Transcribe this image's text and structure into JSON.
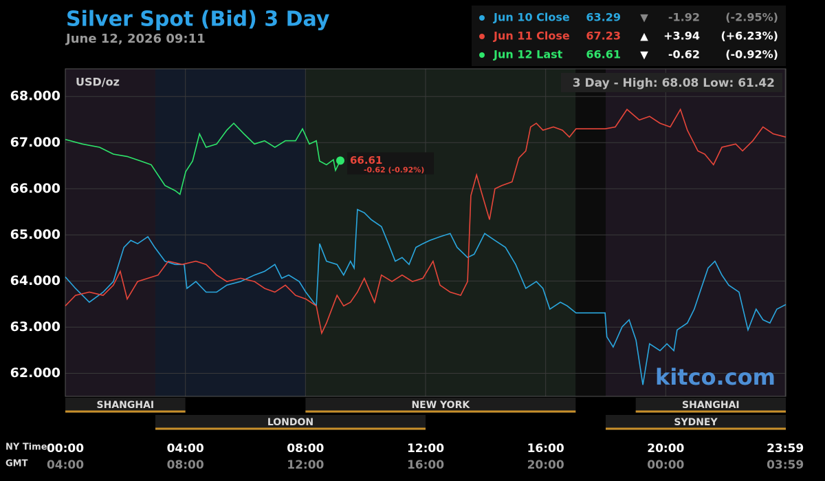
{
  "chart_data": {
    "type": "line",
    "title": "Silver Spot (Bid) 3 Day",
    "subtitle": "June 12, 2026 09:11",
    "unit_label": "USD/oz",
    "range_label": "3 Day - High: 68.08  Low: 61.42",
    "watermark": "kitco.com",
    "x_axis_label": "NY Time",
    "x2_axis_label": "GMT",
    "xlim": [
      0,
      24
    ],
    "xticks": [
      {
        "value": 0,
        "label": "00:00"
      },
      {
        "value": 4,
        "label": "04:00"
      },
      {
        "value": 8,
        "label": "08:00"
      },
      {
        "value": 12,
        "label": "12:00"
      },
      {
        "value": 16,
        "label": "16:00"
      },
      {
        "value": 20,
        "label": "20:00"
      },
      {
        "value": 23.98,
        "label": "23:59"
      }
    ],
    "x2ticks": [
      {
        "value": 0,
        "label": "04:00"
      },
      {
        "value": 4,
        "label": "08:00"
      },
      {
        "value": 8,
        "label": "12:00"
      },
      {
        "value": 12,
        "label": "16:00"
      },
      {
        "value": 16,
        "label": "20:00"
      },
      {
        "value": 20,
        "label": "00:00"
      },
      {
        "value": 23.98,
        "label": "03:59"
      }
    ],
    "ylim": [
      61.5,
      68.6
    ],
    "yticks": [
      {
        "value": 62,
        "label": "62.000"
      },
      {
        "value": 63,
        "label": "63.000"
      },
      {
        "value": 64,
        "label": "64.000"
      },
      {
        "value": 65,
        "label": "65.000"
      },
      {
        "value": 66,
        "label": "66.000"
      },
      {
        "value": 67,
        "label": "67.000"
      },
      {
        "value": 68,
        "label": "68.000"
      }
    ],
    "grid": true,
    "bands": [
      {
        "start": 0,
        "end": 3,
        "color": "#1d1620"
      },
      {
        "start": 3,
        "end": 8,
        "color": "#121a29"
      },
      {
        "start": 8,
        "end": 17,
        "color": "#18201a"
      },
      {
        "start": 17,
        "end": 18,
        "color": "#0c0c0c"
      },
      {
        "start": 18,
        "end": 24,
        "color": "#1d1620"
      }
    ],
    "sessions": [
      {
        "name": "SHANGHAI",
        "start": 0,
        "end": 4,
        "row": 1
      },
      {
        "name": "LONDON",
        "start": 3,
        "end": 12,
        "row": 2
      },
      {
        "name": "NEW YORK",
        "start": 8,
        "end": 17,
        "row": 1
      },
      {
        "name": "SHANGHAI",
        "start": 19,
        "end": 24,
        "row": 1
      },
      {
        "name": "SYDNEY",
        "start": 18,
        "end": 24,
        "row": 2
      }
    ],
    "series": [
      {
        "name": "Jun 10 Close",
        "color": "#2aa8e0",
        "close": 63.29,
        "arrow": "▼",
        "change": "-1.92",
        "change_pct": "(-2.95%)",
        "x": [
          0,
          0.34,
          0.8,
          1.26,
          1.6,
          1.95,
          2.18,
          2.41,
          2.75,
          2.98,
          3.32,
          3.66,
          3.96,
          4.05,
          4.35,
          4.69,
          5.04,
          5.38,
          5.84,
          6.3,
          6.64,
          6.98,
          7.21,
          7.44,
          7.79,
          8.01,
          8.36,
          8.47,
          8.7,
          9.05,
          9.27,
          9.5,
          9.62,
          9.73,
          9.96,
          10.19,
          10.53,
          10.76,
          10.99,
          11.22,
          11.45,
          11.68,
          11.91,
          12.14,
          12.48,
          12.82,
          13.05,
          13.4,
          13.62,
          13.97,
          14.31,
          14.66,
          15.0,
          15.34,
          15.69,
          15.91,
          16.14,
          16.49,
          16.72,
          17.01,
          17.98,
          18.04,
          18.25,
          18.55,
          18.78,
          19.01,
          19.24,
          19.46,
          19.81,
          20.04,
          20.27,
          20.38,
          20.72,
          20.95,
          21.18,
          21.41,
          21.64,
          21.87,
          22.1,
          22.44,
          22.74,
          23.01,
          23.24,
          23.47,
          23.7,
          24.0
        ],
        "values": [
          64.09,
          63.84,
          63.54,
          63.76,
          63.99,
          64.73,
          64.88,
          64.81,
          64.96,
          64.73,
          64.43,
          64.36,
          64.36,
          63.84,
          63.99,
          63.76,
          63.76,
          63.91,
          63.99,
          64.13,
          64.21,
          64.36,
          64.06,
          64.13,
          63.99,
          63.76,
          63.46,
          64.81,
          64.43,
          64.36,
          64.13,
          64.43,
          64.28,
          65.55,
          65.48,
          65.33,
          65.18,
          64.81,
          64.43,
          64.51,
          64.36,
          64.73,
          64.81,
          64.88,
          64.96,
          65.03,
          64.73,
          64.51,
          64.58,
          65.03,
          64.88,
          64.73,
          64.36,
          63.84,
          63.99,
          63.84,
          63.39,
          63.54,
          63.46,
          63.31,
          63.31,
          62.79,
          62.57,
          63.01,
          63.16,
          62.72,
          61.75,
          62.64,
          62.49,
          62.64,
          62.49,
          62.94,
          63.09,
          63.39,
          63.84,
          64.28,
          64.43,
          64.13,
          63.91,
          63.76,
          62.94,
          63.39,
          63.16,
          63.09,
          63.39,
          63.49
        ]
      },
      {
        "name": "Jun 11 Close",
        "color": "#e8463a",
        "close": 67.23,
        "arrow": "▲",
        "change": "+3.94",
        "change_pct": "(+6.23%)",
        "x": [
          0,
          0.34,
          0.8,
          1.26,
          1.6,
          1.83,
          2.06,
          2.41,
          2.75,
          3.09,
          3.43,
          3.89,
          4.35,
          4.69,
          5.04,
          5.38,
          5.84,
          6.3,
          6.64,
          6.98,
          7.33,
          7.67,
          8.01,
          8.36,
          8.54,
          8.7,
          9.05,
          9.27,
          9.5,
          9.73,
          9.96,
          10.3,
          10.53,
          10.88,
          11.22,
          11.56,
          11.91,
          12.25,
          12.48,
          12.82,
          13.17,
          13.4,
          13.51,
          13.7,
          13.86,
          14.13,
          14.31,
          14.54,
          14.88,
          15.11,
          15.34,
          15.5,
          15.69,
          15.91,
          16.26,
          16.56,
          16.79,
          17.01,
          17.98,
          18.32,
          18.71,
          19.12,
          19.46,
          19.81,
          20.15,
          20.49,
          20.72,
          21.07,
          21.3,
          21.59,
          21.87,
          22.33,
          22.56,
          22.9,
          23.24,
          23.58,
          24.0
        ],
        "values": [
          63.46,
          63.69,
          63.76,
          63.69,
          63.91,
          64.21,
          63.61,
          63.99,
          64.06,
          64.13,
          64.43,
          64.36,
          64.43,
          64.36,
          64.13,
          63.99,
          64.06,
          63.99,
          63.84,
          63.76,
          63.91,
          63.69,
          63.61,
          63.46,
          62.87,
          63.09,
          63.69,
          63.46,
          63.54,
          63.76,
          64.06,
          63.54,
          64.13,
          63.99,
          64.13,
          63.99,
          64.06,
          64.43,
          63.91,
          63.76,
          63.69,
          63.99,
          65.85,
          66.3,
          65.93,
          65.33,
          66.0,
          66.07,
          66.15,
          66.67,
          66.82,
          67.34,
          67.42,
          67.27,
          67.34,
          67.27,
          67.12,
          67.3,
          67.3,
          67.34,
          67.72,
          67.49,
          67.57,
          67.42,
          67.34,
          67.72,
          67.27,
          66.82,
          66.75,
          66.52,
          66.9,
          66.97,
          66.82,
          67.04,
          67.34,
          67.19,
          67.12
        ]
      },
      {
        "name": "Jun 12 Last",
        "color": "#2ee66b",
        "close": 66.61,
        "arrow": "▼",
        "change": "-0.62",
        "change_pct": "(-0.92%)",
        "x": [
          0,
          0.57,
          1.14,
          1.6,
          2.06,
          2.52,
          2.86,
          3.32,
          3.66,
          3.82,
          4.01,
          4.24,
          4.47,
          4.69,
          5.04,
          5.38,
          5.61,
          5.95,
          6.3,
          6.64,
          6.98,
          7.33,
          7.67,
          7.9,
          8.13,
          8.36,
          8.47,
          8.7,
          8.93,
          9.0,
          9.16
        ],
        "values": [
          67.07,
          66.97,
          66.9,
          66.75,
          66.7,
          66.6,
          66.52,
          66.07,
          65.96,
          65.88,
          66.37,
          66.6,
          67.19,
          66.9,
          66.97,
          67.27,
          67.42,
          67.19,
          66.97,
          67.04,
          66.9,
          67.04,
          67.04,
          67.3,
          66.97,
          67.04,
          66.6,
          66.52,
          66.63,
          66.4,
          66.61
        ]
      }
    ],
    "last_annotation": {
      "price": "66.61",
      "change": "-0.62 (-0.92%)"
    }
  }
}
